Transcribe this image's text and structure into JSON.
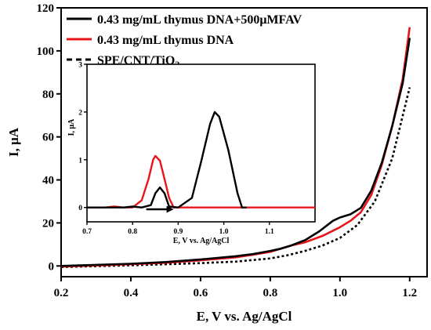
{
  "chart_data": [
    {
      "id": "main",
      "type": "line",
      "xlabel": "E, V vs. Ag/AgCl",
      "ylabel": "I, μA",
      "xlim": [
        0.2,
        1.25
      ],
      "ylim": [
        -5,
        120
      ],
      "xticks": [
        "0.2",
        "0.4",
        "0.6",
        "0.8",
        "1.0",
        "1.2"
      ],
      "yticks": [
        "0",
        "20",
        "40",
        "60",
        "80",
        "100",
        "120"
      ],
      "grid": false,
      "legend_position": "top-left",
      "series": [
        {
          "name": "0.43 mg/mL thymus DNA+500μMFAV",
          "color": "#000000",
          "style": "solid",
          "points": [
            [
              0.2,
              0
            ],
            [
              0.3,
              0.5
            ],
            [
              0.4,
              1
            ],
            [
              0.5,
              1.8
            ],
            [
              0.6,
              3
            ],
            [
              0.7,
              4.5
            ],
            [
              0.75,
              5.5
            ],
            [
              0.8,
              7
            ],
            [
              0.83,
              8
            ],
            [
              0.86,
              9.5
            ],
            [
              0.9,
              12
            ],
            [
              0.94,
              16
            ],
            [
              0.98,
              21
            ],
            [
              1.0,
              22.5
            ],
            [
              1.03,
              24
            ],
            [
              1.06,
              27
            ],
            [
              1.09,
              35
            ],
            [
              1.12,
              48
            ],
            [
              1.15,
              65
            ],
            [
              1.18,
              85
            ],
            [
              1.2,
              106
            ]
          ]
        },
        {
          "name": "0.43 mg/mL thymus DNA",
          "color": "#e8161a",
          "style": "solid",
          "points": [
            [
              0.2,
              -0.3
            ],
            [
              0.3,
              0.2
            ],
            [
              0.4,
              0.8
            ],
            [
              0.5,
              1.5
            ],
            [
              0.6,
              2.6
            ],
            [
              0.7,
              4
            ],
            [
              0.75,
              5.2
            ],
            [
              0.8,
              6.5
            ],
            [
              0.83,
              8
            ],
            [
              0.86,
              9.5
            ],
            [
              0.9,
              11
            ],
            [
              0.95,
              14
            ],
            [
              1.0,
              18
            ],
            [
              1.03,
              21
            ],
            [
              1.06,
              25
            ],
            [
              1.09,
              33
            ],
            [
              1.12,
              47
            ],
            [
              1.15,
              65
            ],
            [
              1.18,
              87
            ],
            [
              1.2,
              111
            ]
          ]
        },
        {
          "name": "SPE/CNT/TiO2",
          "color": "#000000",
          "style": "dashed",
          "points": [
            [
              0.2,
              -0.5
            ],
            [
              0.4,
              0.3
            ],
            [
              0.6,
              1.3
            ],
            [
              0.7,
              2
            ],
            [
              0.8,
              3.5
            ],
            [
              0.85,
              5
            ],
            [
              0.9,
              7
            ],
            [
              0.95,
              9.5
            ],
            [
              1.0,
              13
            ],
            [
              1.05,
              19
            ],
            [
              1.1,
              30
            ],
            [
              1.15,
              50
            ],
            [
              1.2,
              83
            ]
          ]
        }
      ]
    },
    {
      "id": "inset",
      "type": "line",
      "xlabel": "E, V vs. Ag/AgCl",
      "ylabel": "I, μA",
      "xlim": [
        0.7,
        1.2
      ],
      "ylim": [
        -0.3,
        3
      ],
      "xticks": [
        "0.7",
        "0.8",
        "0.9",
        "1.0",
        "1.1"
      ],
      "yticks": [
        "0",
        "1",
        "2",
        "3"
      ],
      "annotation": "arrow pointing right (scan direction)",
      "series": [
        {
          "color": "#e8161a",
          "points": [
            [
              0.7,
              0
            ],
            [
              0.74,
              0
            ],
            [
              0.76,
              0.02
            ],
            [
              0.78,
              0
            ],
            [
              0.8,
              0
            ],
            [
              0.82,
              0.15
            ],
            [
              0.835,
              0.6
            ],
            [
              0.845,
              1.0
            ],
            [
              0.85,
              1.08
            ],
            [
              0.86,
              0.98
            ],
            [
              0.87,
              0.6
            ],
            [
              0.88,
              0.2
            ],
            [
              0.89,
              0
            ],
            [
              0.9,
              0
            ],
            [
              1.0,
              0
            ],
            [
              1.1,
              0
            ],
            [
              1.2,
              0
            ]
          ]
        },
        {
          "color": "#000000",
          "points": [
            [
              0.7,
              0
            ],
            [
              0.78,
              0
            ],
            [
              0.8,
              0.02
            ],
            [
              0.82,
              0
            ],
            [
              0.84,
              0.05
            ],
            [
              0.85,
              0.3
            ],
            [
              0.86,
              0.42
            ],
            [
              0.87,
              0.3
            ],
            [
              0.88,
              0.02
            ],
            [
              0.9,
              0
            ],
            [
              0.93,
              0.2
            ],
            [
              0.95,
              0.95
            ],
            [
              0.97,
              1.75
            ],
            [
              0.98,
              2
            ],
            [
              0.99,
              1.9
            ],
            [
              1.01,
              1.2
            ],
            [
              1.03,
              0.3
            ],
            [
              1.04,
              0
            ],
            [
              1.05,
              0
            ]
          ]
        }
      ]
    }
  ]
}
